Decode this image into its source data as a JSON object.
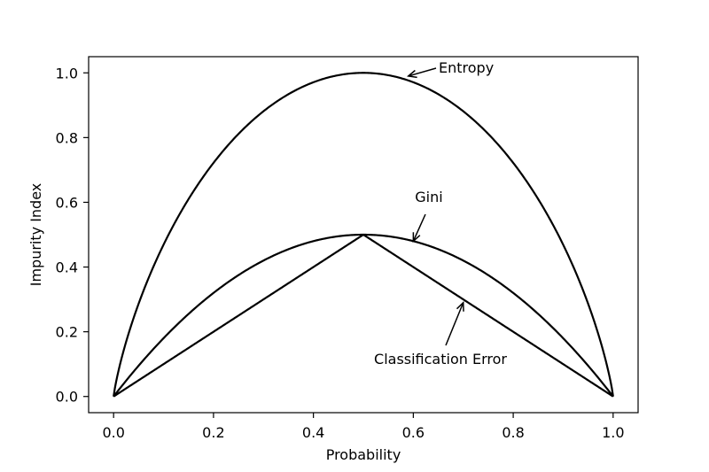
{
  "chart_data": {
    "type": "line",
    "xlabel": "Probability",
    "ylabel": "Impurity Index",
    "xlim": [
      -0.05,
      1.05
    ],
    "ylim": [
      -0.05,
      1.05
    ],
    "xticks": [
      0.0,
      0.2,
      0.4,
      0.6,
      0.8,
      1.0
    ],
    "xtick_labels": [
      "0.0",
      "0.2",
      "0.4",
      "0.6",
      "0.8",
      "1.0"
    ],
    "yticks": [
      0.0,
      0.2,
      0.4,
      0.6,
      0.8,
      1.0
    ],
    "ytick_labels": [
      "0.0",
      "0.2",
      "0.4",
      "0.6",
      "0.8",
      "1.0"
    ],
    "grid": false,
    "legend": "none",
    "line_color": "#000000",
    "series": [
      {
        "key": "entropy",
        "formula": "-p*log2(p)-(1-p)*log2(1-p)"
      },
      {
        "key": "gini",
        "formula": "1-p^2-(1-p)^2"
      },
      {
        "key": "classification-error",
        "formula": "1-max(p,1-p)"
      }
    ],
    "x_samples": [
      0.0,
      0.1,
      0.2,
      0.3,
      0.4,
      0.5,
      0.6,
      0.7,
      0.8,
      0.9,
      1.0
    ],
    "annotations": [
      {
        "key": "entropy",
        "text": "Entropy",
        "point": [
          0.59,
          0.99
        ]
      },
      {
        "key": "gini",
        "text": "Gini",
        "point": [
          0.6,
          0.48
        ]
      },
      {
        "key": "classification-error",
        "text": "Classification Error",
        "point": [
          0.7,
          0.29
        ]
      }
    ]
  }
}
